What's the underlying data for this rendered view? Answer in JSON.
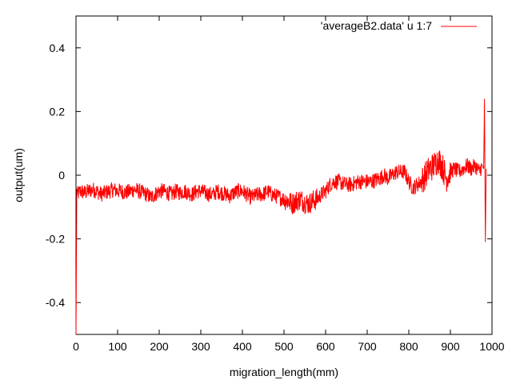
{
  "chart_data": {
    "type": "line",
    "title": "",
    "xlabel": "migration_length(mm)",
    "ylabel": "output(um)",
    "xlim": [
      0,
      1000
    ],
    "ylim": [
      -0.5,
      0.5
    ],
    "x_ticks": [
      0,
      100,
      200,
      300,
      400,
      500,
      600,
      700,
      800,
      900,
      1000
    ],
    "y_ticks": [
      -0.4,
      -0.2,
      0,
      0.2,
      0.4
    ],
    "grid": false,
    "legend_position": "top-right",
    "series": [
      {
        "name": "'averageB2.data' u 1:7",
        "color": "#ff0000",
        "x": [
          0,
          2,
          4,
          10,
          20,
          30,
          40,
          50,
          60,
          70,
          80,
          90,
          100,
          110,
          120,
          130,
          140,
          150,
          160,
          170,
          180,
          190,
          200,
          210,
          220,
          230,
          240,
          250,
          260,
          270,
          280,
          290,
          300,
          310,
          320,
          330,
          340,
          350,
          360,
          370,
          380,
          390,
          400,
          410,
          420,
          430,
          440,
          450,
          460,
          470,
          480,
          490,
          500,
          510,
          520,
          530,
          540,
          550,
          560,
          570,
          580,
          590,
          600,
          610,
          620,
          630,
          640,
          650,
          660,
          670,
          680,
          690,
          700,
          710,
          720,
          730,
          740,
          750,
          760,
          770,
          780,
          790,
          800,
          810,
          820,
          830,
          840,
          850,
          860,
          870,
          880,
          890,
          900,
          910,
          920,
          930,
          940,
          950,
          960,
          970,
          975,
          980,
          982,
          984,
          986
        ],
        "y": [
          -0.5,
          -0.05,
          -0.06,
          -0.05,
          -0.055,
          -0.05,
          -0.045,
          -0.05,
          -0.06,
          -0.055,
          -0.05,
          -0.045,
          -0.05,
          -0.05,
          -0.055,
          -0.05,
          -0.045,
          -0.05,
          -0.055,
          -0.06,
          -0.07,
          -0.06,
          -0.05,
          -0.05,
          -0.055,
          -0.06,
          -0.05,
          -0.055,
          -0.05,
          -0.055,
          -0.06,
          -0.05,
          -0.05,
          -0.055,
          -0.06,
          -0.06,
          -0.05,
          -0.055,
          -0.06,
          -0.065,
          -0.055,
          -0.05,
          -0.05,
          -0.06,
          -0.07,
          -0.065,
          -0.06,
          -0.06,
          -0.05,
          -0.06,
          -0.065,
          -0.07,
          -0.075,
          -0.08,
          -0.09,
          -0.08,
          -0.075,
          -0.085,
          -0.09,
          -0.08,
          -0.075,
          -0.06,
          -0.05,
          -0.03,
          -0.02,
          -0.02,
          -0.025,
          -0.03,
          -0.03,
          -0.025,
          -0.02,
          -0.02,
          -0.02,
          -0.02,
          -0.015,
          -0.01,
          0.0,
          -0.01,
          0.0,
          0.01,
          0.01,
          0.01,
          -0.02,
          -0.04,
          -0.03,
          -0.02,
          0.0,
          0.02,
          0.03,
          0.05,
          0.03,
          -0.01,
          0.01,
          0.02,
          0.01,
          0.02,
          0.03,
          0.02,
          0.03,
          0.01,
          0.03,
          0.02,
          0.24,
          -0.21,
          0.02
        ]
      }
    ]
  }
}
